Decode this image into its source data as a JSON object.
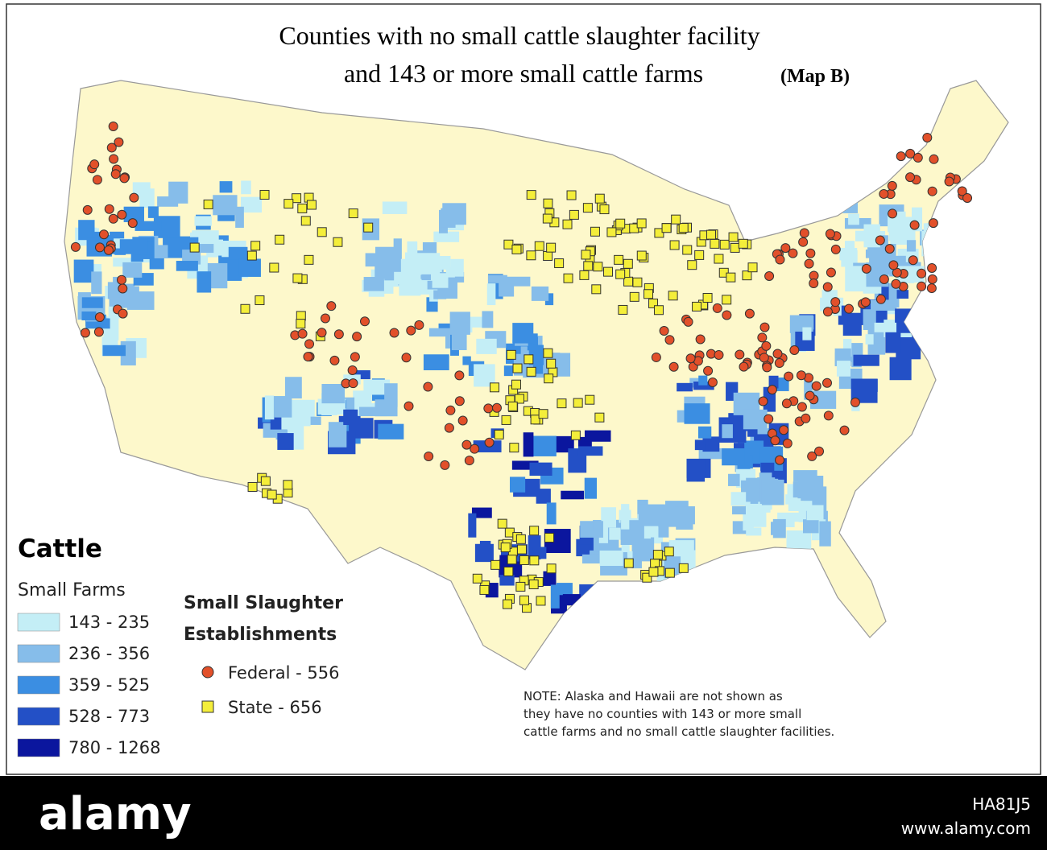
{
  "header": {
    "title_line1": "Counties with no small cattle slaughter facility",
    "title_line2": "and 143 or more small cattle farms",
    "map_label": "(Map B)"
  },
  "legend": {
    "title": "Cattle",
    "farms_title": "Small Farms",
    "farm_classes": [
      {
        "label": "143 - 235",
        "color": "#c4eef6"
      },
      {
        "label": "236 - 356",
        "color": "#86bdea"
      },
      {
        "label": "359 - 525",
        "color": "#3b8ee2"
      },
      {
        "label": "528 - 773",
        "color": "#2350c6"
      },
      {
        "label": "780 - 1268",
        "color": "#0b169e"
      }
    ],
    "establishments_title": [
      "Small Slaughter",
      "Establishments"
    ],
    "establishments": [
      {
        "label": "Federal - 556",
        "color": "#e2502a",
        "shape": "circle"
      },
      {
        "label": "State - 656",
        "color": "#f4ee3a",
        "shape": "square"
      }
    ]
  },
  "note": [
    "NOTE:  Alaska and Hawaii are not shown as",
    "they have no counties with 143 or more small",
    "cattle farms and no small cattle slaughter facilities."
  ],
  "footer": {
    "logo": "alamy",
    "image_id": "HA81J5",
    "site": "www.alamy.com"
  }
}
